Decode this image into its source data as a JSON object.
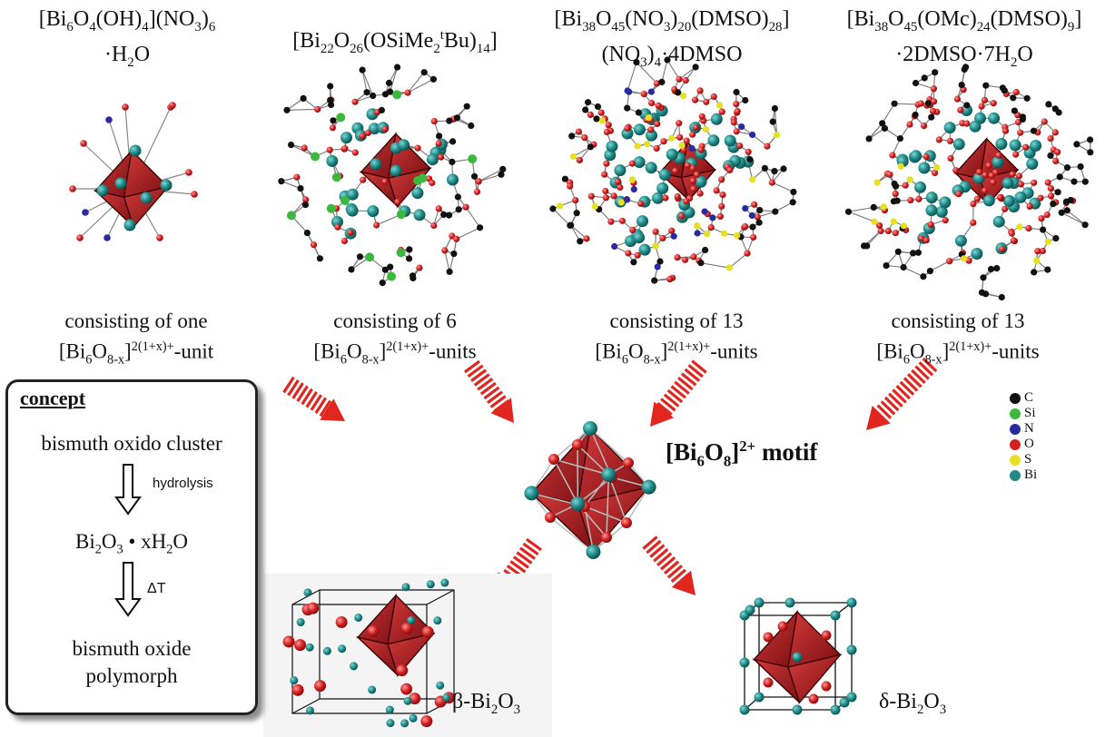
{
  "clusters": [
    {
      "formula_line1": {
        "base": "[Bi",
        "s1": "6",
        "t1": "O",
        "s2": "4",
        "t2": "(OH)",
        "s3": "4",
        "t3": "](NO",
        "s4": "3",
        "t4": ")",
        "s5": "6"
      },
      "formula_line2": {
        "t1": "·H",
        "s1": "2",
        "t2": "O"
      },
      "caption_line1": "consisting of one",
      "caption_unit": {
        "a": "[Bi",
        "s1": "6",
        "b": "O",
        "s2": "8-x",
        "c": "]",
        "sup": "2(1+x)+",
        "d": "-unit"
      }
    },
    {
      "formula_line1": {
        "base": "[Bi",
        "s1": "22",
        "t1": "O",
        "s2": "26",
        "t2": "(OSiMe",
        "s3": "2",
        "sup": "t",
        "t3": "Bu)",
        "s4": "14",
        "t4": "]"
      },
      "caption_line1": "consisting of 6",
      "caption_unit": {
        "a": "[Bi",
        "s1": "6",
        "b": "O",
        "s2": "8-x",
        "c": "]",
        "sup": "2(1+x)+",
        "d": "-units"
      }
    },
    {
      "formula_line1": {
        "base": "[Bi",
        "s1": "38",
        "t1": "O",
        "s2": "45",
        "t2": "(NO",
        "s3": "3",
        "t3": ")",
        "s4": "20",
        "t4": "(DMSO)",
        "s5": "28",
        "t5": "]"
      },
      "formula_line2": {
        "t1": "(NO",
        "s1": "3",
        "t2": ")",
        "s2": "4",
        "t3": "·4DMSO"
      },
      "caption_line1": "consisting of 13",
      "caption_unit": {
        "a": "[Bi",
        "s1": "6",
        "b": "O",
        "s2": "8-x",
        "c": "]",
        "sup": "2(1+x)+",
        "d": "-units"
      }
    },
    {
      "formula_line1": {
        "base": "[Bi",
        "s1": "38",
        "t1": "O",
        "s2": "45",
        "t2": "(OMc)",
        "s3": "24",
        "t3": "(DMSO)",
        "s4": "9",
        "t4": "]"
      },
      "formula_line2": {
        "t1": "·2DMSO·7H",
        "s1": "2",
        "t2": "O"
      },
      "caption_line1": "consisting of 13",
      "caption_unit": {
        "a": "[Bi",
        "s1": "6",
        "b": "O",
        "s2": "8-x",
        "c": "]",
        "sup": "2(1+x)+",
        "d": "-units"
      }
    }
  ],
  "concept": {
    "title": "concept",
    "step1": "bismuth oxido cluster",
    "arrow1_label": "hydrolysis",
    "step2": {
      "a": "Bi",
      "s1": "2",
      "b": "O",
      "s2": "3",
      "c": " • xH",
      "s3": "2",
      "d": "O"
    },
    "arrow2_label": "ΔT",
    "step3_line1": "bismuth oxide",
    "step3_line2": "polymorph"
  },
  "motif": {
    "a": "[Bi",
    "s1": "6",
    "b": "O",
    "s2": "8",
    "c": "]",
    "sup": "2+",
    "d": " motif"
  },
  "phases": {
    "beta": {
      "a": "β-Bi",
      "s1": "2",
      "b": "O",
      "s2": "3"
    },
    "delta": {
      "a": "δ-Bi",
      "s1": "2",
      "b": "O",
      "s2": "3"
    }
  },
  "legend": [
    {
      "label": "C",
      "color": "#111111"
    },
    {
      "label": "Si",
      "color": "#3cb83c"
    },
    {
      "label": "N",
      "color": "#2a2aa0"
    },
    {
      "label": "O",
      "color": "#d42020"
    },
    {
      "label": "S",
      "color": "#e6e020"
    },
    {
      "label": "Bi",
      "color": "#1f8a88"
    }
  ],
  "colors": {
    "arrow": "#e0261f",
    "octahedron": "#a5171a",
    "bi": "#1f8a88",
    "o": "#d42020"
  }
}
